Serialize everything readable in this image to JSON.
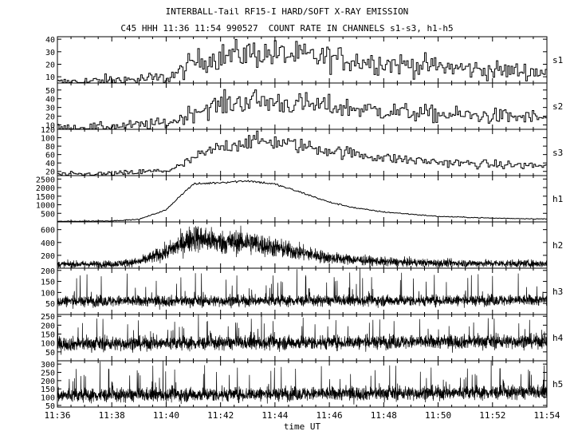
{
  "title": "INTERBALL-Tail RF15-I HARD/SOFT X-RAY EMISSION",
  "subtitle": "C45 HHH 11:36 11:54 990527  COUNT RATE IN CHANNELS s1-s3, h1-h5",
  "chart_data": {
    "type": "line",
    "title": "INTERBALL-Tail RF15-I HARD/SOFT X-RAY EMISSION",
    "subtitle": "C45 HHH 11:36 11:54 990527  COUNT RATE IN CHANNELS s1-s3, h1-h5",
    "xlabel": "time UT",
    "x_ticks": [
      "11:36",
      "11:38",
      "11:40",
      "11:42",
      "11:44",
      "11:46",
      "11:48",
      "11:50",
      "11:52",
      "11:54"
    ],
    "xlim": [
      "11:36",
      "11:54"
    ],
    "panels": [
      {
        "name": "s1",
        "ylim": [
          5,
          42
        ],
        "yticks": [
          10,
          20,
          30,
          40
        ],
        "series": [
          {
            "x": [
              "11:36",
              "11:38",
              "11:40",
              "11:40:30",
              "11:41",
              "11:42",
              "11:43",
              "11:44",
              "11:46",
              "11:48",
              "11:50",
              "11:52",
              "11:54"
            ],
            "y": [
              5,
              7,
              9,
              14,
              22,
              26,
              29,
              28,
              25,
              21,
              18,
              15,
              14
            ]
          }
        ]
      },
      {
        "name": "s2",
        "ylim": [
          5,
          58
        ],
        "yticks": [
          10,
          20,
          30,
          40,
          50
        ],
        "series": [
          {
            "x": [
              "11:36",
              "11:38",
              "11:40",
              "11:40:30",
              "11:41",
              "11:42",
              "11:43",
              "11:44",
              "11:46",
              "11:48",
              "11:50",
              "11:52",
              "11:54"
            ],
            "y": [
              6,
              8,
              12,
              17,
              26,
              33,
              38,
              36,
              31,
              26,
              22,
              20,
              18
            ]
          }
        ]
      },
      {
        "name": "s3",
        "ylim": [
          10,
          120
        ],
        "yticks": [
          20,
          40,
          60,
          80,
          100,
          120
        ],
        "series": [
          {
            "x": [
              "11:36",
              "11:38",
              "11:40",
              "11:40:30",
              "11:41",
              "11:42",
              "11:43",
              "11:44",
              "11:46",
              "11:48",
              "11:50",
              "11:52",
              "11:54"
            ],
            "y": [
              12,
              14,
              22,
              32,
              52,
              78,
              92,
              90,
              70,
              52,
              42,
              36,
              33
            ]
          }
        ]
      },
      {
        "name": "h1",
        "ylim": [
          0,
          2700
        ],
        "yticks": [
          500,
          1000,
          1500,
          2000,
          2500
        ],
        "series": [
          {
            "x": [
              "11:36",
              "11:38",
              "11:39",
              "11:40",
              "11:40:30",
              "11:41",
              "11:42",
              "11:43",
              "11:44",
              "11:45",
              "11:46",
              "11:47",
              "11:48",
              "11:50",
              "11:52",
              "11:54"
            ],
            "y": [
              30,
              60,
              150,
              700,
              1500,
              2200,
              2300,
              2400,
              2200,
              1700,
              1150,
              800,
              580,
              320,
              220,
              170
            ]
          }
        ]
      },
      {
        "name": "h2",
        "ylim": [
          0,
          720
        ],
        "yticks": [
          200,
          400,
          600
        ],
        "series": [
          {
            "x": [
              "11:36",
              "11:38",
              "11:39",
              "11:40",
              "11:41",
              "11:42",
              "11:43",
              "11:44",
              "11:46",
              "11:48",
              "11:50",
              "11:52",
              "11:54"
            ],
            "y": [
              60,
              65,
              100,
              250,
              480,
              400,
              410,
              320,
              160,
              100,
              80,
              75,
              70
            ]
          }
        ]
      },
      {
        "name": "h3",
        "ylim": [
          0,
          210
        ],
        "yticks": [
          50,
          100,
          150,
          200
        ],
        "series": [
          {
            "x": [
              "11:36",
              "11:54"
            ],
            "y": [
              60,
              65
            ]
          }
        ]
      },
      {
        "name": "h4",
        "ylim": [
          0,
          260
        ],
        "yticks": [
          50,
          100,
          150,
          200,
          250
        ],
        "series": [
          {
            "x": [
              "11:36",
              "11:54"
            ],
            "y": [
              95,
              110
            ]
          }
        ]
      },
      {
        "name": "h5",
        "ylim": [
          40,
          320
        ],
        "yticks": [
          50,
          100,
          150,
          200,
          250,
          300
        ],
        "series": [
          {
            "x": [
              "11:36",
              "11:54"
            ],
            "y": [
              110,
              130
            ]
          }
        ]
      }
    ]
  }
}
